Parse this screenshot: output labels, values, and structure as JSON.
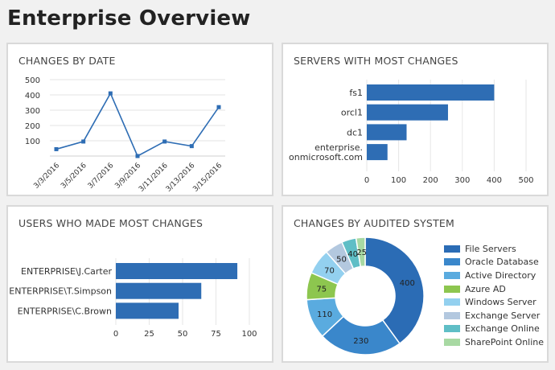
{
  "page": {
    "title": "Enterprise Overview"
  },
  "panels": {
    "changes_by_date": {
      "title": "CHANGES BY DATE"
    },
    "servers": {
      "title": "SERVERS WITH MOST CHANGES"
    },
    "users": {
      "title": "USERS WHO MADE MOST CHANGES"
    },
    "audited": {
      "title": "CHANGES BY AUDITED SYSTEM"
    }
  },
  "chart_data": [
    {
      "type": "line",
      "title": "CHANGES BY DATE",
      "x": [
        "3/3/2016",
        "3/5/2016",
        "3/7/2016",
        "3/9/2016",
        "3/11/2016",
        "3/13/2016",
        "3/15/2016"
      ],
      "values": [
        45,
        95,
        410,
        0,
        95,
        65,
        320
      ],
      "y_ticks": [
        100,
        200,
        300,
        400,
        500
      ],
      "ylim": [
        0,
        500
      ],
      "grid": true,
      "color": "#2e6db4"
    },
    {
      "type": "bar",
      "orientation": "horizontal",
      "title": "SERVERS WITH MOST CHANGES",
      "categories": [
        "fs1",
        "orcl1",
        "dc1",
        "enterprise.\nonmicrosoft.com"
      ],
      "values": [
        400,
        255,
        125,
        65
      ],
      "x_ticks": [
        0,
        100,
        200,
        300,
        400,
        500
      ],
      "xlim": [
        0,
        500
      ],
      "color": "#2e6db4"
    },
    {
      "type": "bar",
      "orientation": "horizontal",
      "title": "USERS WHO MADE MOST CHANGES",
      "categories": [
        "ENTERPRISE\\J.Carter",
        "ENTERPRISE\\T.Simpson",
        "ENTERPRISE\\C.Brown"
      ],
      "values": [
        91,
        64,
        47
      ],
      "x_ticks": [
        0,
        25,
        50,
        75,
        100
      ],
      "xlim": [
        0,
        100
      ],
      "color": "#2e6db4"
    },
    {
      "type": "pie",
      "title": "CHANGES BY AUDITED SYSTEM",
      "donut": true,
      "legend_position": "right",
      "slices": [
        {
          "label": "File Servers",
          "value": 400,
          "color": "#2b6cb5"
        },
        {
          "label": "Oracle Database",
          "value": 230,
          "color": "#3a87cb"
        },
        {
          "label": "Active Directory",
          "value": 110,
          "color": "#5aabdf"
        },
        {
          "label": "Azure AD",
          "value": 75,
          "color": "#8dc64f"
        },
        {
          "label": "Windows Server",
          "value": 70,
          "color": "#93d0ef"
        },
        {
          "label": "Exchange Server",
          "value": 50,
          "color": "#b3c8df"
        },
        {
          "label": "Exchange Online",
          "value": 40,
          "color": "#5fbec6"
        },
        {
          "label": "SharePoint Online",
          "value": 25,
          "color": "#a8d9a3"
        }
      ]
    }
  ]
}
